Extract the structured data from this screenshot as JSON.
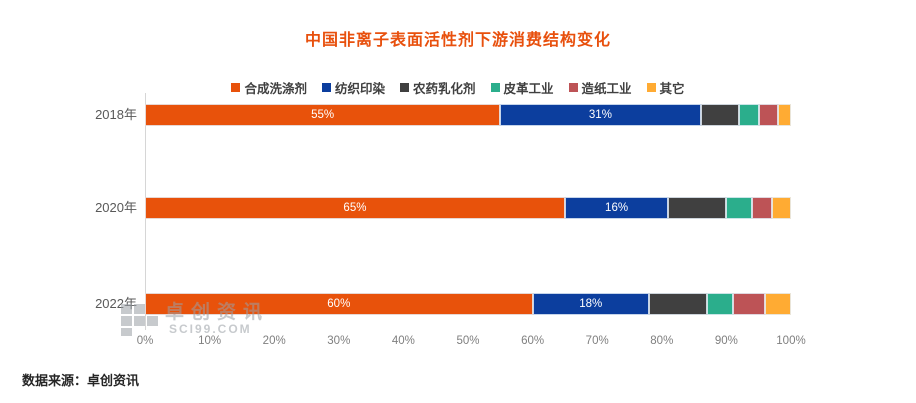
{
  "title": "中国非离子表面活性剂下游消费结构变化",
  "colors": {
    "title": "#E8500D",
    "background": "#FFFFFF",
    "axis_line": "#D6D6D6",
    "tick_label": "#7F7F7F",
    "category_label": "#595959",
    "legend_text": "#404040",
    "bar_label_text": "#FFFFFF",
    "watermark": "#9AA0A6",
    "source_text": "#262626"
  },
  "chart_data": {
    "type": "bar",
    "orientation": "horizontal",
    "stacked": true,
    "title": "中国非离子表面活性剂下游消费结构变化",
    "categories": [
      "2018年",
      "2020年",
      "2022年"
    ],
    "series": [
      {
        "name": "合成洗涤剂",
        "color": "#E8520B",
        "values": [
          55,
          65,
          60
        ]
      },
      {
        "name": "纺织印染",
        "color": "#0C3E9E",
        "values": [
          31,
          16,
          18
        ]
      },
      {
        "name": "农药乳化剂",
        "color": "#404040",
        "values": [
          6,
          9,
          9
        ]
      },
      {
        "name": "皮革工业",
        "color": "#2BAE8C",
        "values": [
          3,
          4,
          4
        ]
      },
      {
        "name": "造纸工业",
        "color": "#BD5356",
        "values": [
          3,
          3,
          5
        ]
      },
      {
        "name": "其它",
        "color": "#FFAB33",
        "values": [
          2,
          3,
          4
        ]
      }
    ],
    "segment_labels_shown": [
      "55%",
      "31%",
      "65%",
      "16%",
      "60%",
      "18%"
    ],
    "x_ticks": [
      "0%",
      "10%",
      "20%",
      "30%",
      "40%",
      "50%",
      "60%",
      "70%",
      "80%",
      "90%",
      "100%"
    ],
    "xlim": [
      0,
      100
    ],
    "xlabel": "",
    "ylabel": "",
    "grid": false,
    "legend_position": "top"
  },
  "watermark": {
    "brand": "卓创资讯",
    "domain": "SCI99.COM"
  },
  "source": "数据来源：卓创资讯"
}
